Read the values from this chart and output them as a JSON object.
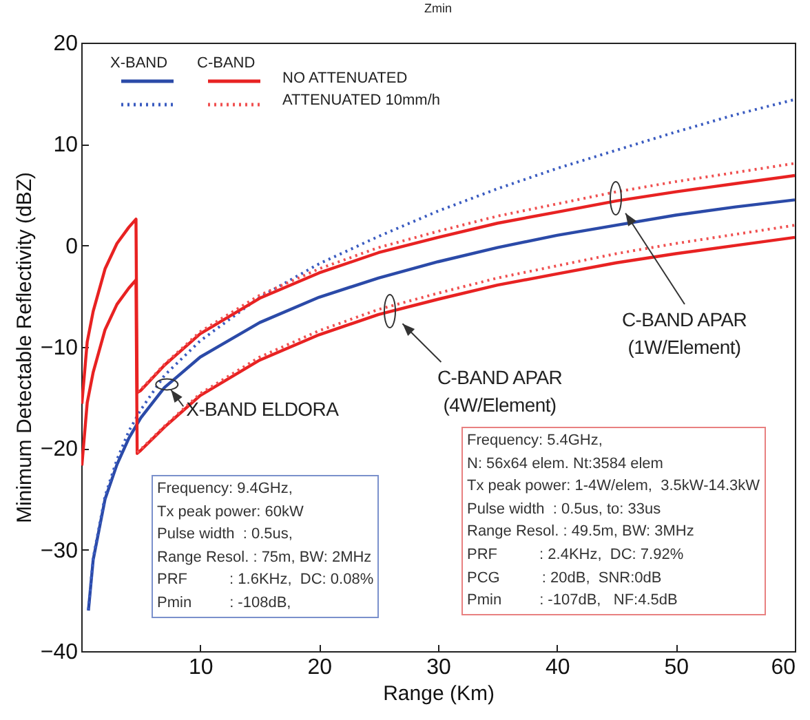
{
  "chart_data": {
    "type": "line",
    "title": "Zmin",
    "xlabel": "Range (Km)",
    "ylabel": "Minimum Detectable Reflectivity (dBZ)",
    "xlim": [
      0,
      60
    ],
    "xticks": [
      10,
      20,
      30,
      40,
      50,
      60
    ],
    "ylim": [
      -40,
      20
    ],
    "yticks": [
      -40,
      -30,
      -20,
      -10,
      0,
      10,
      20
    ],
    "grid": false,
    "series": [
      {
        "color": "#2b4aa8",
        "line_style": "solid",
        "x": [
          0.6,
          1,
          2,
          3,
          4,
          5,
          7,
          10,
          15,
          20,
          25,
          30,
          35,
          40,
          45,
          50,
          55,
          60
        ],
        "values": [
          -36,
          -31,
          -25,
          -21.6,
          -19,
          -17,
          -14,
          -11,
          -7.6,
          -5.1,
          -3.2,
          -1.6,
          -0.2,
          1,
          2,
          3,
          3.8,
          4.5
        ]
      },
      {
        "color": "#3a5bc0",
        "line_style": "dotted",
        "x": [
          0.6,
          1,
          2,
          3,
          4,
          5,
          7,
          10,
          15,
          20,
          25,
          30,
          35,
          40,
          45,
          50,
          55,
          60
        ],
        "values": [
          -35.9,
          -30.8,
          -24.7,
          -21.1,
          -18.3,
          -16.2,
          -12.8,
          -9.4,
          -5.1,
          -1.8,
          0.9,
          3.4,
          5.6,
          7.6,
          9.4,
          11.2,
          12.9,
          14.4
        ]
      },
      {
        "color": "#e82222",
        "line_style": "solid",
        "x": [
          0.05,
          0.5,
          1,
          2,
          3,
          4,
          4.6,
          4.7,
          5,
          7,
          10,
          15,
          20,
          25,
          30,
          35,
          40,
          45,
          50,
          55,
          60
        ],
        "values": [
          -15.6,
          -9.5,
          -6.5,
          -2.3,
          0.2,
          1.8,
          2.6,
          -14.5,
          -14.3,
          -11.8,
          -8.7,
          -5.2,
          -2.7,
          -0.7,
          0.8,
          2.2,
          3.3,
          4.4,
          5.3,
          6.1,
          6.9
        ]
      },
      {
        "color": "#f05050",
        "line_style": "dotted",
        "x": [
          4.7,
          5,
          7,
          10,
          15,
          20,
          25,
          30,
          35,
          40,
          45,
          50,
          55,
          60
        ],
        "values": [
          -14.4,
          -14.2,
          -11.7,
          -8.5,
          -4.9,
          -2.3,
          -0.2,
          1.4,
          2.9,
          4.1,
          5.3,
          6.3,
          7.2,
          8.1
        ]
      },
      {
        "color": "#e82222",
        "line_style": "solid",
        "x": [
          0.05,
          0.5,
          1,
          2,
          3,
          4,
          4.6,
          4.7,
          5,
          7,
          10,
          15,
          20,
          25,
          30,
          35,
          40,
          45,
          50,
          55,
          60
        ],
        "values": [
          -21.7,
          -15.5,
          -12.5,
          -8.3,
          -5.8,
          -4.2,
          -3.4,
          -20.5,
          -20.2,
          -17.9,
          -14.8,
          -11.3,
          -8.8,
          -6.8,
          -5.3,
          -3.9,
          -2.8,
          -1.7,
          -0.8,
          0,
          0.8
        ]
      },
      {
        "color": "#f05050",
        "line_style": "dotted",
        "x": [
          4.7,
          5,
          7,
          10,
          15,
          20,
          25,
          30,
          35,
          40,
          45,
          50,
          55,
          60
        ],
        "values": [
          -20.4,
          -20.1,
          -17.8,
          -14.6,
          -11,
          -8.4,
          -6.3,
          -4.7,
          -3.2,
          -2,
          -0.8,
          0.2,
          1.1,
          2
        ]
      }
    ],
    "annotations": [
      "X-BAND",
      "C-BAND",
      "NO ATTENUATED",
      "ATTENUATED 10mm/h",
      "Frequency: 9.4GHz,\nTx peak power: 60kW\nPulse width  : 0.5us,\nRange Resol. : 75m, BW: 2MHz\nPRF          : 1.6KHz,  DC: 0.08%\nPmin         : -108dB,",
      "Frequency: 5.4GHz,\nN: 56x64 elem. Nt:3584 elem\nTx peak power: 1-4W/elem,  3.5kW-14.3kW\nPulse width  : 0.5us, to: 33us\nRange Resol. : 49.5m, BW: 3MHz\nPRF          : 2.4KHz,  DC: 7.92%\nPCG          : 20dB,  SNR:0dB\nPmin         : -107dB,   NF:4.5dB",
      {
        "text": "X-BAND ELDORA",
        "x": 7.2,
        "y": -13.7
      },
      "C-BAND APAR\n(4W/Element)",
      "C-BAND APAR\n(1W/Element)"
    ]
  }
}
